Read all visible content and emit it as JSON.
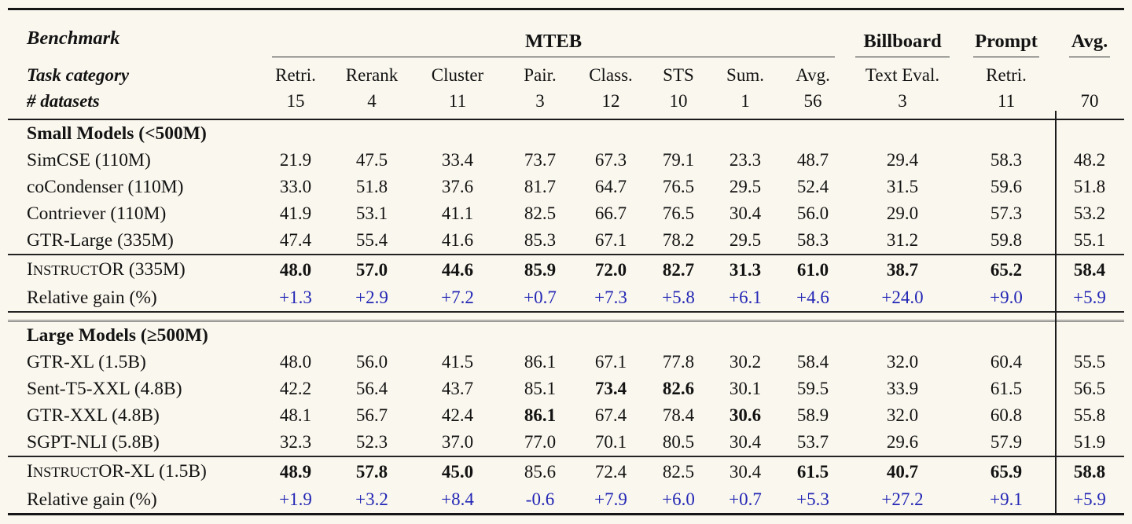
{
  "page": {
    "background": "#faf7ee",
    "accent_blue": "#2327b5",
    "rule_color": "#161616"
  },
  "header": {
    "benchmark_label": "Benchmark",
    "groups": {
      "mteb": "MTEB",
      "billboard": "Billboard",
      "prompt": "Prompt",
      "avg": "Avg."
    },
    "task_category_label": "Task category",
    "datasets_label": "# datasets",
    "columns": [
      {
        "name": "Retri.",
        "count": "15"
      },
      {
        "name": "Rerank",
        "count": "4"
      },
      {
        "name": "Cluster",
        "count": "11"
      },
      {
        "name": "Pair.",
        "count": "3"
      },
      {
        "name": "Class.",
        "count": "12"
      },
      {
        "name": "STS",
        "count": "10"
      },
      {
        "name": "Sum.",
        "count": "1"
      },
      {
        "name": "Avg.",
        "count": "56"
      },
      {
        "name": "Text Eval.",
        "count": "3"
      },
      {
        "name": "Retri.",
        "count": "11"
      },
      {
        "name": "",
        "count": "70"
      }
    ]
  },
  "table": {
    "sections": [
      {
        "heading": "Small Models (<500M)",
        "models": [
          {
            "label": "SimCSE (110M)",
            "values": [
              "21.9",
              "47.5",
              "33.4",
              "73.7",
              "67.3",
              "79.1",
              "23.3",
              "48.7",
              "29.4",
              "58.3",
              "48.2"
            ],
            "bold": []
          },
          {
            "label": "coCondenser (110M)",
            "values": [
              "33.0",
              "51.8",
              "37.6",
              "81.7",
              "64.7",
              "76.5",
              "29.5",
              "52.4",
              "31.5",
              "59.6",
              "51.8"
            ],
            "bold": []
          },
          {
            "label": "Contriever (110M)",
            "values": [
              "41.9",
              "53.1",
              "41.1",
              "82.5",
              "66.7",
              "76.5",
              "30.4",
              "56.0",
              "29.0",
              "57.3",
              "53.2"
            ],
            "bold": []
          },
          {
            "label": "GTR-Large (335M)",
            "values": [
              "47.4",
              "55.4",
              "41.6",
              "85.3",
              "67.1",
              "78.2",
              "29.5",
              "58.3",
              "31.2",
              "59.8",
              "55.1"
            ],
            "bold": []
          }
        ],
        "instructor": {
          "label": "InstructOR (335M)",
          "label_parts": {
            "head": "I",
            "small": "NSTRUCT",
            "tail": "OR (335M)"
          },
          "values": [
            "48.0",
            "57.0",
            "44.6",
            "85.9",
            "72.0",
            "82.7",
            "31.3",
            "61.0",
            "38.7",
            "65.2",
            "58.4"
          ],
          "bold": [
            0,
            1,
            2,
            3,
            4,
            5,
            6,
            7,
            8,
            9,
            10
          ]
        },
        "gain": {
          "label": "Relative gain (%)",
          "values": [
            "+1.3",
            "+2.9",
            "+7.2",
            "+0.7",
            "+7.3",
            "+5.8",
            "+6.1",
            "+4.6",
            "+24.0",
            "+9.0",
            "+5.9"
          ]
        },
        "separator_after": true
      },
      {
        "heading": "Large Models (≥500M)",
        "models": [
          {
            "label": "GTR-XL (1.5B)",
            "values": [
              "48.0",
              "56.0",
              "41.5",
              "86.1",
              "67.1",
              "77.8",
              "30.2",
              "58.4",
              "32.0",
              "60.4",
              "55.5"
            ],
            "bold": []
          },
          {
            "label": "Sent-T5-XXL (4.8B)",
            "values": [
              "42.2",
              "56.4",
              "43.7",
              "85.1",
              "73.4",
              "82.6",
              "30.1",
              "59.5",
              "33.9",
              "61.5",
              "56.5"
            ],
            "bold": [
              4,
              5
            ]
          },
          {
            "label": "GTR-XXL (4.8B)",
            "values": [
              "48.1",
              "56.7",
              "42.4",
              "86.1",
              "67.4",
              "78.4",
              "30.6",
              "58.9",
              "32.0",
              "60.8",
              "55.8"
            ],
            "bold": [
              3,
              6
            ]
          },
          {
            "label": "SGPT-NLI (5.8B)",
            "values": [
              "32.3",
              "52.3",
              "37.0",
              "77.0",
              "70.1",
              "80.5",
              "30.4",
              "53.7",
              "29.6",
              "57.9",
              "51.9"
            ],
            "bold": []
          }
        ],
        "instructor": {
          "label": "InstructOR-XL (1.5B)",
          "label_parts": {
            "head": "I",
            "small": "NSTRUCT",
            "tail": "OR-XL (1.5B)"
          },
          "values": [
            "48.9",
            "57.8",
            "45.0",
            "85.6",
            "72.4",
            "82.5",
            "30.4",
            "61.5",
            "40.7",
            "65.9",
            "58.8"
          ],
          "bold": [
            0,
            1,
            2,
            7,
            8,
            9,
            10
          ]
        },
        "gain": {
          "label": "Relative gain (%)",
          "values": [
            "+1.9",
            "+3.2",
            "+8.4",
            "-0.6",
            "+7.9",
            "+6.0",
            "+0.7",
            "+5.3",
            "+27.2",
            "+9.1",
            "+5.9"
          ]
        },
        "separator_after": false
      }
    ]
  }
}
